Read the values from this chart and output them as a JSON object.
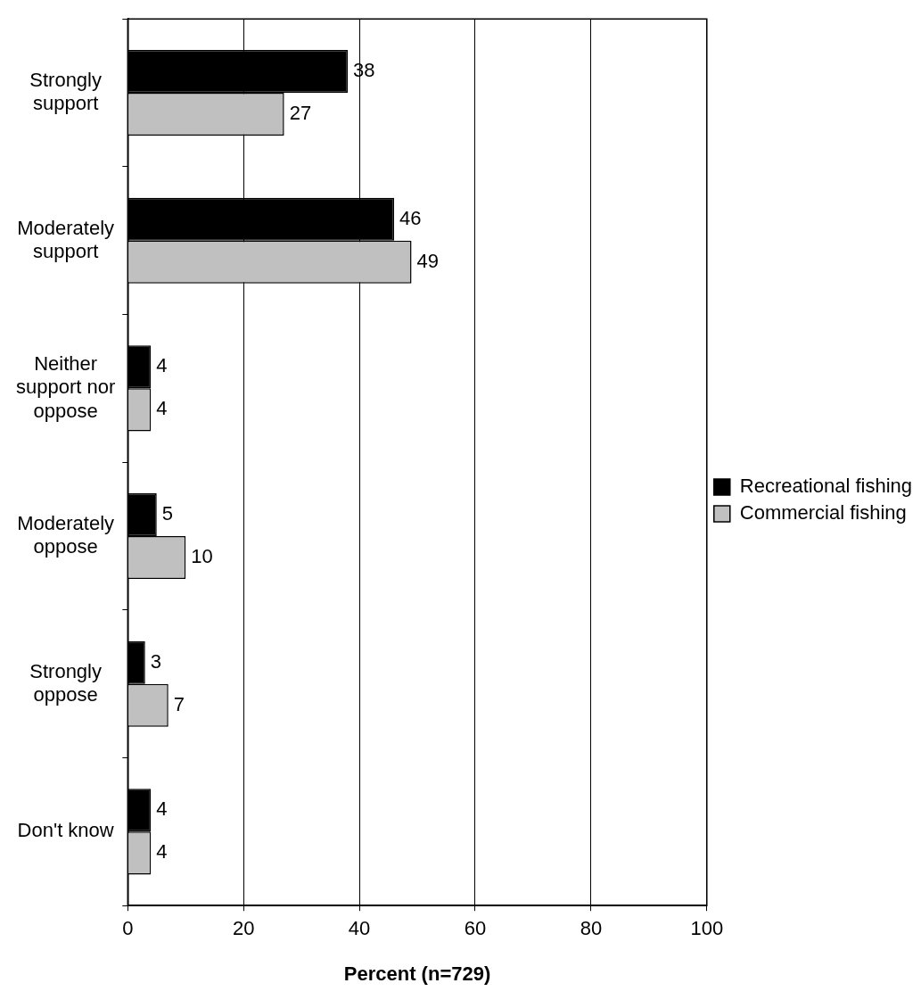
{
  "chart_data": {
    "type": "bar",
    "orientation": "horizontal",
    "xlabel": "Percent (n=729)",
    "categories": [
      "Strongly\nsupport",
      "Moderately\nsupport",
      "Neither\nsupport nor\noppose",
      "Moderately\noppose",
      "Strongly\noppose",
      "Don't know"
    ],
    "series": [
      {
        "name": "Recreational fishing",
        "color": "#000000",
        "values": [
          38,
          46,
          4,
          5,
          3,
          4
        ]
      },
      {
        "name": "Commercial fishing",
        "color": "#c0c0c0",
        "values": [
          27,
          49,
          4,
          10,
          7,
          4
        ]
      }
    ],
    "xlim": [
      0,
      100
    ],
    "xticks": [
      0,
      20,
      40,
      60,
      80,
      100
    ],
    "grid": "x",
    "legend": "right",
    "data_labels": true
  }
}
